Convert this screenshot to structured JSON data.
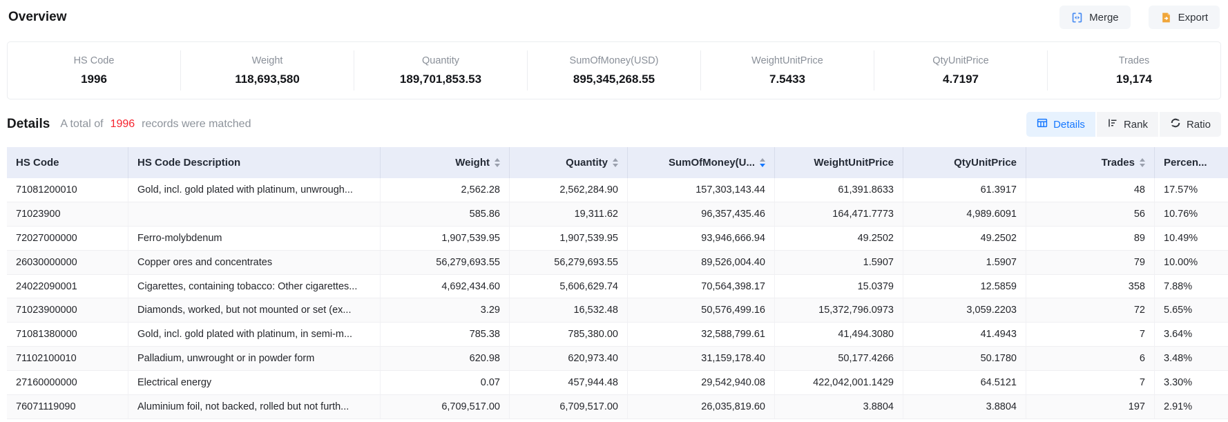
{
  "header": {
    "title": "Overview",
    "merge_label": "Merge",
    "export_label": "Export"
  },
  "stats": [
    {
      "label": "HS Code",
      "value": "1996"
    },
    {
      "label": "Weight",
      "value": "118,693,580"
    },
    {
      "label": "Quantity",
      "value": "189,701,853.53"
    },
    {
      "label": "SumOfMoney(USD)",
      "value": "895,345,268.55"
    },
    {
      "label": "WeightUnitPrice",
      "value": "7.5433"
    },
    {
      "label": "QtyUnitPrice",
      "value": "4.7197"
    },
    {
      "label": "Trades",
      "value": "19,174"
    }
  ],
  "details": {
    "title": "Details",
    "summary_prefix": "A total of",
    "count": "1996",
    "summary_suffix": "records were matched",
    "tabs": [
      {
        "label": "Details",
        "active": true
      },
      {
        "label": "Rank",
        "active": false
      },
      {
        "label": "Ratio",
        "active": false
      }
    ]
  },
  "table": {
    "columns": [
      {
        "key": "hs_code",
        "label": "HS Code",
        "align": "left",
        "sortable": false,
        "sort": null
      },
      {
        "key": "description",
        "label": "HS Code Description",
        "align": "left",
        "sortable": false,
        "sort": null
      },
      {
        "key": "weight",
        "label": "Weight",
        "align": "right",
        "sortable": true,
        "sort": null
      },
      {
        "key": "quantity",
        "label": "Quantity",
        "align": "right",
        "sortable": true,
        "sort": null
      },
      {
        "key": "sum_of_money",
        "label": "SumOfMoney(U...",
        "align": "right",
        "sortable": true,
        "sort": "desc"
      },
      {
        "key": "weight_unit_price",
        "label": "WeightUnitPrice",
        "align": "right",
        "sortable": false,
        "sort": null
      },
      {
        "key": "qty_unit_price",
        "label": "QtyUnitPrice",
        "align": "right",
        "sortable": false,
        "sort": null
      },
      {
        "key": "trades",
        "label": "Trades",
        "align": "right",
        "sortable": true,
        "sort": null
      },
      {
        "key": "percent",
        "label": "Percen...",
        "align": "left",
        "sortable": false,
        "sort": null
      }
    ],
    "rows": [
      {
        "hs_code": "71081200010",
        "description": "Gold, incl. gold plated with platinum, unwrough...",
        "weight": "2,562.28",
        "quantity": "2,562,284.90",
        "sum_of_money": "157,303,143.44",
        "weight_unit_price": "61,391.8633",
        "qty_unit_price": "61.3917",
        "trades": "48",
        "percent": "17.57%"
      },
      {
        "hs_code": "71023900",
        "description": "",
        "weight": "585.86",
        "quantity": "19,311.62",
        "sum_of_money": "96,357,435.46",
        "weight_unit_price": "164,471.7773",
        "qty_unit_price": "4,989.6091",
        "trades": "56",
        "percent": "10.76%"
      },
      {
        "hs_code": "72027000000",
        "description": "Ferro-molybdenum",
        "weight": "1,907,539.95",
        "quantity": "1,907,539.95",
        "sum_of_money": "93,946,666.94",
        "weight_unit_price": "49.2502",
        "qty_unit_price": "49.2502",
        "trades": "89",
        "percent": "10.49%"
      },
      {
        "hs_code": "26030000000",
        "description": "Copper ores and concentrates",
        "weight": "56,279,693.55",
        "quantity": "56,279,693.55",
        "sum_of_money": "89,526,004.40",
        "weight_unit_price": "1.5907",
        "qty_unit_price": "1.5907",
        "trades": "79",
        "percent": "10.00%"
      },
      {
        "hs_code": "24022090001",
        "description": "Cigarettes, containing tobacco: Other cigarettes...",
        "weight": "4,692,434.60",
        "quantity": "5,606,629.74",
        "sum_of_money": "70,564,398.17",
        "weight_unit_price": "15.0379",
        "qty_unit_price": "12.5859",
        "trades": "358",
        "percent": "7.88%"
      },
      {
        "hs_code": "71023900000",
        "description": "Diamonds, worked, but not mounted or set (ex...",
        "weight": "3.29",
        "quantity": "16,532.48",
        "sum_of_money": "50,576,499.16",
        "weight_unit_price": "15,372,796.0973",
        "qty_unit_price": "3,059.2203",
        "trades": "72",
        "percent": "5.65%"
      },
      {
        "hs_code": "71081380000",
        "description": "Gold, incl. gold plated with platinum, in semi-m...",
        "weight": "785.38",
        "quantity": "785,380.00",
        "sum_of_money": "32,588,799.61",
        "weight_unit_price": "41,494.3080",
        "qty_unit_price": "41.4943",
        "trades": "7",
        "percent": "3.64%"
      },
      {
        "hs_code": "71102100010",
        "description": "Palladium, unwrought or in powder form",
        "weight": "620.98",
        "quantity": "620,973.40",
        "sum_of_money": "31,159,178.40",
        "weight_unit_price": "50,177.4266",
        "qty_unit_price": "50.1780",
        "trades": "6",
        "percent": "3.48%"
      },
      {
        "hs_code": "27160000000",
        "description": "Electrical energy",
        "weight": "0.07",
        "quantity": "457,944.48",
        "sum_of_money": "29,542,940.08",
        "weight_unit_price": "422,042,001.1429",
        "qty_unit_price": "64.5121",
        "trades": "7",
        "percent": "3.30%"
      },
      {
        "hs_code": "76071119090",
        "description": "Aluminium foil, not backed, rolled but not furth...",
        "weight": "6,709,517.00",
        "quantity": "6,709,517.00",
        "sum_of_money": "26,035,819.60",
        "weight_unit_price": "3.8804",
        "qty_unit_price": "3.8804",
        "trades": "197",
        "percent": "2.91%"
      }
    ]
  },
  "icons": {
    "merge": "merge-icon",
    "export": "export-document-icon",
    "details_tab": "table-grid-icon",
    "rank_tab": "rank-list-icon",
    "ratio_tab": "circular-arrows-icon",
    "sort": "sort-carets-icon"
  },
  "colors": {
    "accent_blue": "#1678ff",
    "count_red": "#f5222d",
    "merge_icon_blue": "#4a8df2",
    "export_icon_orange": "#f0a63a",
    "table_header_bg": "#e9edf8",
    "active_tab_bg": "#e7f2fe",
    "muted_text": "#8a9099"
  }
}
